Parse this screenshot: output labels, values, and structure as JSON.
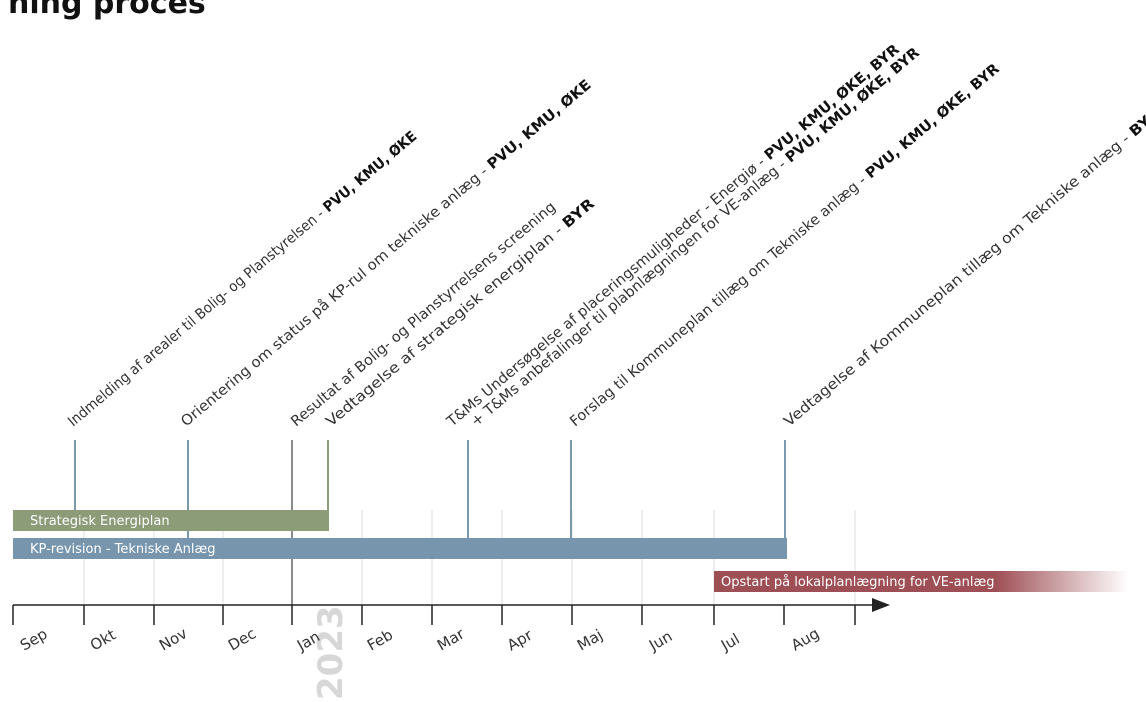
{
  "title": "ning proces",
  "colors": {
    "energiplan_bar": "#8c9b78",
    "kp_revision_bar": "#7796ae",
    "lokalplan_bar": "#9e4f55",
    "milestone_line": "#7a98ae",
    "axis": "#222222",
    "year_watermark": "#d7d7d7"
  },
  "year_label": "2023",
  "months": [
    "Sep",
    "Okt",
    "Nov",
    "Dec",
    "Jan",
    "Feb",
    "Mar",
    "Apr",
    "Maj",
    "Jun",
    "Jul",
    "Aug"
  ],
  "bars": {
    "energiplan": "Strategisk Energiplan",
    "kp_revision": "KP-revision - Tekniske Anlæg",
    "lokalplan": "Opstart på lokalplanlægning for VE-anlæg"
  },
  "milestones": [
    {
      "text": "Indmelding af arealer til Bolig- og Planstyrelsen - ",
      "bold": "PVU, KMU, ØKE"
    },
    {
      "text": "Orientering om status på KP-rul om tekniske anlæg - ",
      "bold": "PVU, KMU, ØKE"
    },
    {
      "text": "Resultat af Bolig- og Planstyrrelsens screening",
      "bold": ""
    },
    {
      "text": "Vedtagelse af strategisk energiplan - ",
      "bold": "BYR"
    },
    {
      "text": "T&Ms Undersøgelse af placeringsmuligheder - Energiø - ",
      "bold": "PVU, KMU, ØKE, BYR"
    },
    {
      "text": "+ T&Ms anbefalinger til plabnlægningen for VE-anlæg - ",
      "bold": "PVU, KMU, ØKE, BYR"
    },
    {
      "text": "Forslag til Kommuneplan tillæg om Tekniske anlæg - ",
      "bold": "PVU, KMU, ØKE, BYR"
    },
    {
      "text": "Vedtagelse af Kommuneplan tillæg om Tekniske anlæg - ",
      "bold": "BYR"
    }
  ]
}
